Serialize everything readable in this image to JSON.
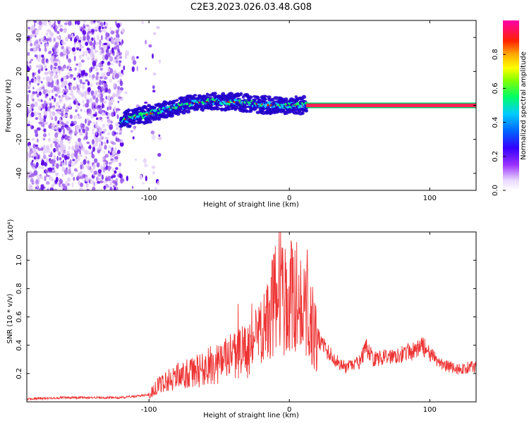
{
  "title": "C2E3.2023.026.03.48.G08",
  "colors": {
    "trace": "#ee3333",
    "scatter_low": "#e0c8f8",
    "scatter_mid": "#a060f0",
    "scatter_high": "#5a00e8"
  },
  "chart_data": [
    {
      "type": "heatmap",
      "xlabel": "Height of straight line (km)",
      "ylabel": "Frequency (Hz)",
      "xlim": [
        -187,
        133
      ],
      "ylim": [
        -50,
        50
      ],
      "x_ticks": [
        -100,
        0,
        100
      ],
      "y_ticks": [
        -40,
        -20,
        0,
        20,
        40
      ],
      "colorbar": {
        "label": "Normalized spectral amplitude",
        "range": [
          0,
          1
        ],
        "ticks": [
          "0.0",
          "0.2",
          "0.4",
          "0.6",
          "0.8"
        ],
        "tick_values": [
          0.0,
          0.2,
          0.4,
          0.6,
          0.8
        ]
      },
      "ridge": {
        "x": [
          -120,
          -110,
          -100,
          -90,
          -80,
          -70,
          -60,
          -50,
          -40,
          -30,
          -20,
          -10,
          0,
          10,
          20,
          40,
          60,
          80,
          100,
          120,
          133
        ],
        "y": [
          -9,
          -7,
          -5,
          -3,
          -1,
          1,
          2,
          2.5,
          2,
          1.5,
          0.5,
          0,
          0,
          0,
          0,
          0,
          0,
          0,
          0,
          0,
          0
        ]
      }
    },
    {
      "type": "line",
      "xlabel": "Height of straight line (km)",
      "ylabel": "SNR (10 * v/v)",
      "y_multiplier": "(x10⁴)",
      "xlim": [
        -187,
        133
      ],
      "ylim": [
        0,
        1.2
      ],
      "x_ticks": [
        -100,
        0,
        100
      ],
      "y_ticks": [
        0.2,
        0.4,
        0.6,
        0.8,
        1.0
      ],
      "series": [
        {
          "x": [
            -187,
            -160,
            -140,
            -120,
            -110,
            -100,
            -95,
            -90,
            -80,
            -70,
            -60,
            -50,
            -40,
            -30,
            -25,
            -20,
            -15,
            -10,
            -8,
            -5,
            -2,
            0,
            5,
            10,
            15,
            20,
            30,
            40,
            50,
            55,
            60,
            70,
            80,
            90,
            95,
            100,
            110,
            120,
            133
          ],
          "y": [
            0.02,
            0.03,
            0.03,
            0.03,
            0.04,
            0.05,
            0.1,
            0.14,
            0.18,
            0.2,
            0.24,
            0.28,
            0.32,
            0.36,
            0.42,
            0.48,
            0.58,
            0.72,
            0.9,
            0.74,
            0.68,
            0.78,
            0.68,
            0.72,
            0.56,
            0.46,
            0.32,
            0.24,
            0.28,
            0.38,
            0.3,
            0.32,
            0.34,
            0.36,
            0.4,
            0.33,
            0.26,
            0.23,
            0.25
          ]
        }
      ]
    }
  ]
}
